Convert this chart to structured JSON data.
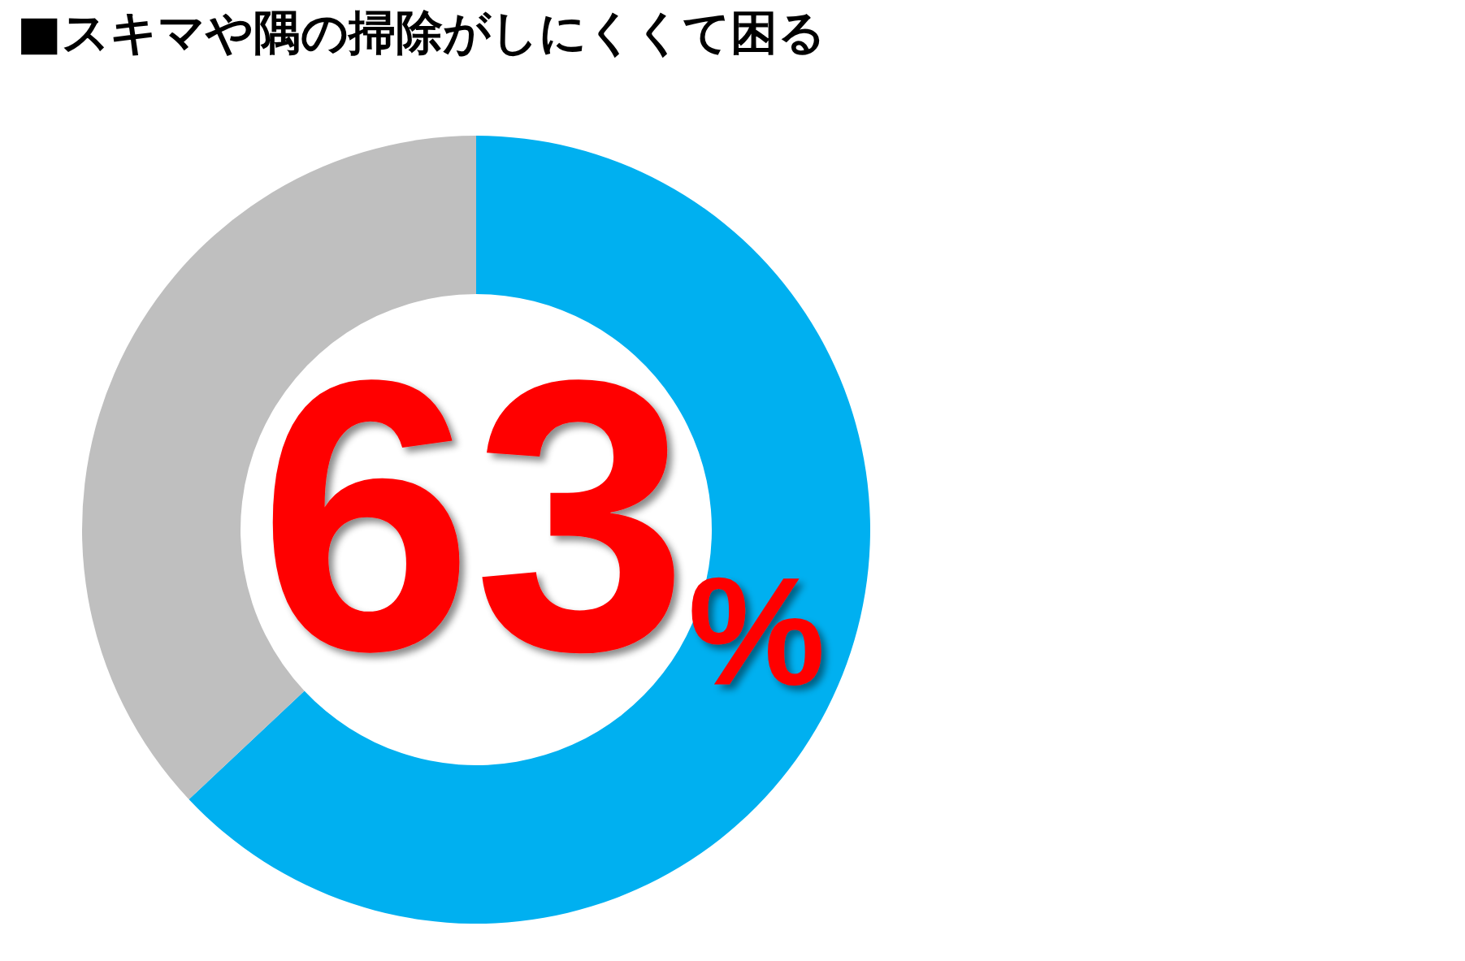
{
  "chart_data": {
    "type": "donut",
    "title": "■スキマや隅の掃除がしにくくて困る",
    "categories": [
      null,
      null
    ],
    "values": [
      63,
      37
    ],
    "colors": [
      "#00b0f0",
      "#bfbfbf"
    ],
    "value_labels": [
      "63%",
      null
    ]
  }
}
